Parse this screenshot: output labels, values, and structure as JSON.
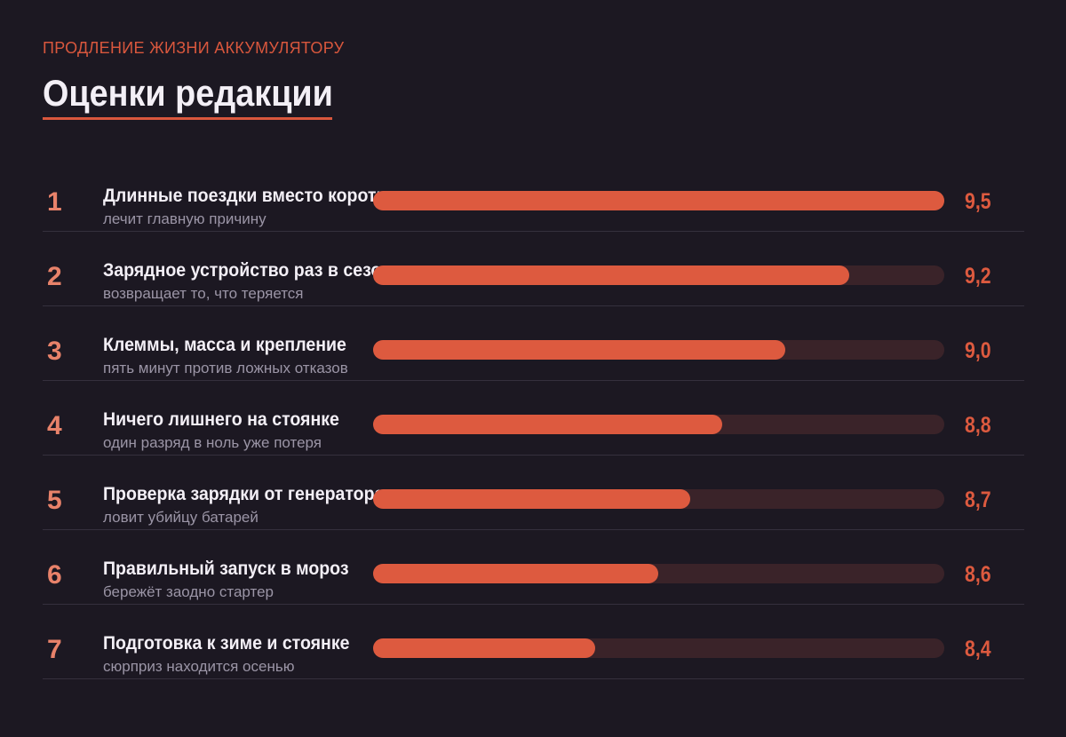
{
  "header": {
    "kicker": "ПРОДЛЕНИЕ ЖИЗНИ АККУМУЛЯТОРУ",
    "title": "Оценки редакции"
  },
  "colors": {
    "background": "#1c1822",
    "accent": "#dd5a3f",
    "track": "#3a2329",
    "rank": "#e8826a",
    "text": "#f3eff6",
    "subtext": "#9b95a6"
  },
  "chart_data": {
    "type": "bar",
    "orientation": "horizontal",
    "title": "Оценки редакции",
    "categories": [
      "Длинные поездки вместо коротких",
      "Зарядное устройство раз в сезон",
      "Клеммы, масса и крепление",
      "Ничего лишнего на стоянке",
      "Проверка зарядки от генератора",
      "Правильный запуск в мороз",
      "Подготовка к зиме и стоянке"
    ],
    "values": [
      9.5,
      9.2,
      9.0,
      8.8,
      8.7,
      8.6,
      8.4
    ],
    "xlim": [
      7.7,
      9.5
    ],
    "grid": false,
    "items": [
      {
        "rank": "1",
        "label": "Длинные поездки вместо коротких",
        "sub": "лечит главную причину",
        "value": 9.5,
        "value_label": "9,5"
      },
      {
        "rank": "2",
        "label": "Зарядное устройство раз в сезон",
        "sub": "возвращает то, что теряется",
        "value": 9.2,
        "value_label": "9,2"
      },
      {
        "rank": "3",
        "label": "Клеммы, масса и крепление",
        "sub": "пять минут против ложных отказов",
        "value": 9.0,
        "value_label": "9,0"
      },
      {
        "rank": "4",
        "label": "Ничего лишнего на стоянке",
        "sub": "один разряд в ноль уже потеря",
        "value": 8.8,
        "value_label": "8,8"
      },
      {
        "rank": "5",
        "label": "Проверка зарядки от генератора",
        "sub": "ловит убийцу батарей",
        "value": 8.7,
        "value_label": "8,7"
      },
      {
        "rank": "6",
        "label": "Правильный запуск в мороз",
        "sub": "бережёт заодно стартер",
        "value": 8.6,
        "value_label": "8,6"
      },
      {
        "rank": "7",
        "label": "Подготовка к зиме и стоянке",
        "sub": "сюрприз находится осенью",
        "value": 8.4,
        "value_label": "8,4"
      }
    ]
  }
}
